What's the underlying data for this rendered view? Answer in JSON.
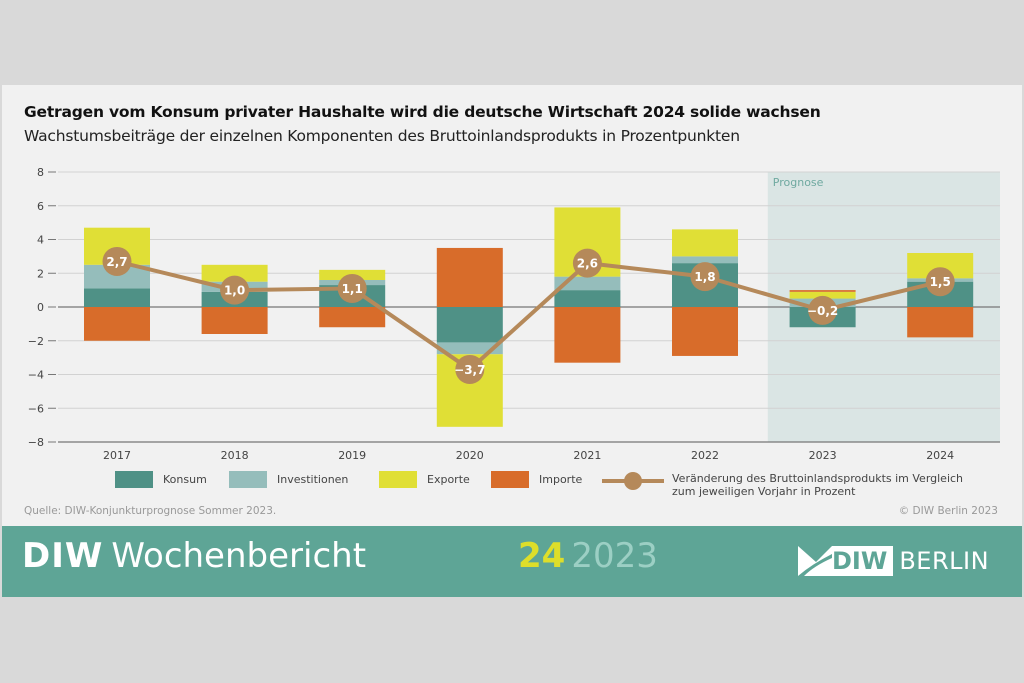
{
  "header": {
    "title": "Getragen vom Konsum privater Haushalte wird die deutsche Wirtschaft 2024 solide wachsen",
    "subtitle": "Wachstumsbeiträge der einzelnen Komponenten des Bruttoinlandsprodukts in Prozentpunkten"
  },
  "colors": {
    "konsum": "#4f9186",
    "investitionen": "#95bdbb",
    "exporte": "#e0df36",
    "importe": "#d86c2a",
    "gdp_line": "#b5895a",
    "prognose_bg": "#dae5e4",
    "footer_bg": "#5ea596",
    "issue_number": "#dede2a"
  },
  "chart_data": {
    "type": "bar",
    "stacked": true,
    "title": "Getragen vom Konsum privater Haushalte wird die deutsche Wirtschaft 2024 solide wachsen",
    "subtitle": "Wachstumsbeiträge der einzelnen Komponenten des Bruttoinlandsprodukts in Prozentpunkten",
    "xlabel": "",
    "ylabel": "",
    "categories": [
      "2017",
      "2018",
      "2019",
      "2020",
      "2021",
      "2022",
      "2023",
      "2024"
    ],
    "ylim": [
      -8,
      8
    ],
    "yticks": [
      8,
      6,
      4,
      2,
      0,
      -2,
      -4,
      -6,
      -8
    ],
    "ytick_labels": [
      "8",
      "6",
      "4",
      "2",
      "0",
      "−2",
      "−4",
      "−6",
      "−8"
    ],
    "grid": true,
    "forecast_region": {
      "label": "Prognose",
      "categories": [
        "2023",
        "2024"
      ]
    },
    "series": [
      {
        "name": "Konsum",
        "key": "konsum",
        "values": [
          1.1,
          0.9,
          1.3,
          -2.1,
          1.0,
          2.6,
          -1.2,
          1.5
        ]
      },
      {
        "name": "Investitionen",
        "key": "investitionen",
        "values": [
          1.4,
          0.6,
          0.3,
          -0.7,
          0.8,
          0.4,
          0.5,
          0.2
        ]
      },
      {
        "name": "Exporte",
        "key": "exporte",
        "values": [
          2.2,
          1.0,
          0.6,
          -4.3,
          4.1,
          1.6,
          0.4,
          1.5
        ]
      },
      {
        "name": "Importe",
        "key": "importe",
        "values": [
          -2.0,
          -1.6,
          -1.2,
          3.5,
          -3.3,
          -2.9,
          0.1,
          -1.8
        ]
      }
    ],
    "line_series": {
      "name": "Veränderung des Bruttoinlandsprodukts im Vergleich zum jeweiligen Vorjahr in Prozent",
      "values": [
        2.7,
        1.0,
        1.1,
        -3.7,
        2.6,
        1.8,
        -0.2,
        1.5
      ],
      "labels": [
        "2,7",
        "1,0",
        "1,1",
        "−3,7",
        "2,6",
        "1,8",
        "−0,2",
        "1,5"
      ]
    },
    "legend_position": "bottom"
  },
  "legend": {
    "items": [
      {
        "label": "Konsum",
        "key": "konsum"
      },
      {
        "label": "Investitionen",
        "key": "investitionen"
      },
      {
        "label": "Exporte",
        "key": "exporte"
      },
      {
        "label": "Importe",
        "key": "importe"
      }
    ],
    "gdp_label_line1": "Veränderung des Bruttoinlandsprodukts im Vergleich",
    "gdp_label_line2": "zum jeweiligen Vorjahr in Prozent"
  },
  "source": "Quelle: DIW-Konjunkturprognose Sommer 2023.",
  "copyright": "© DIW Berlin 2023",
  "footer": {
    "brand_bold": "DIW",
    "brand_light": "Wochenbericht",
    "issue_number": "24",
    "issue_year": "2023",
    "logo_bold": "DIW",
    "logo_text": "BERLIN"
  }
}
